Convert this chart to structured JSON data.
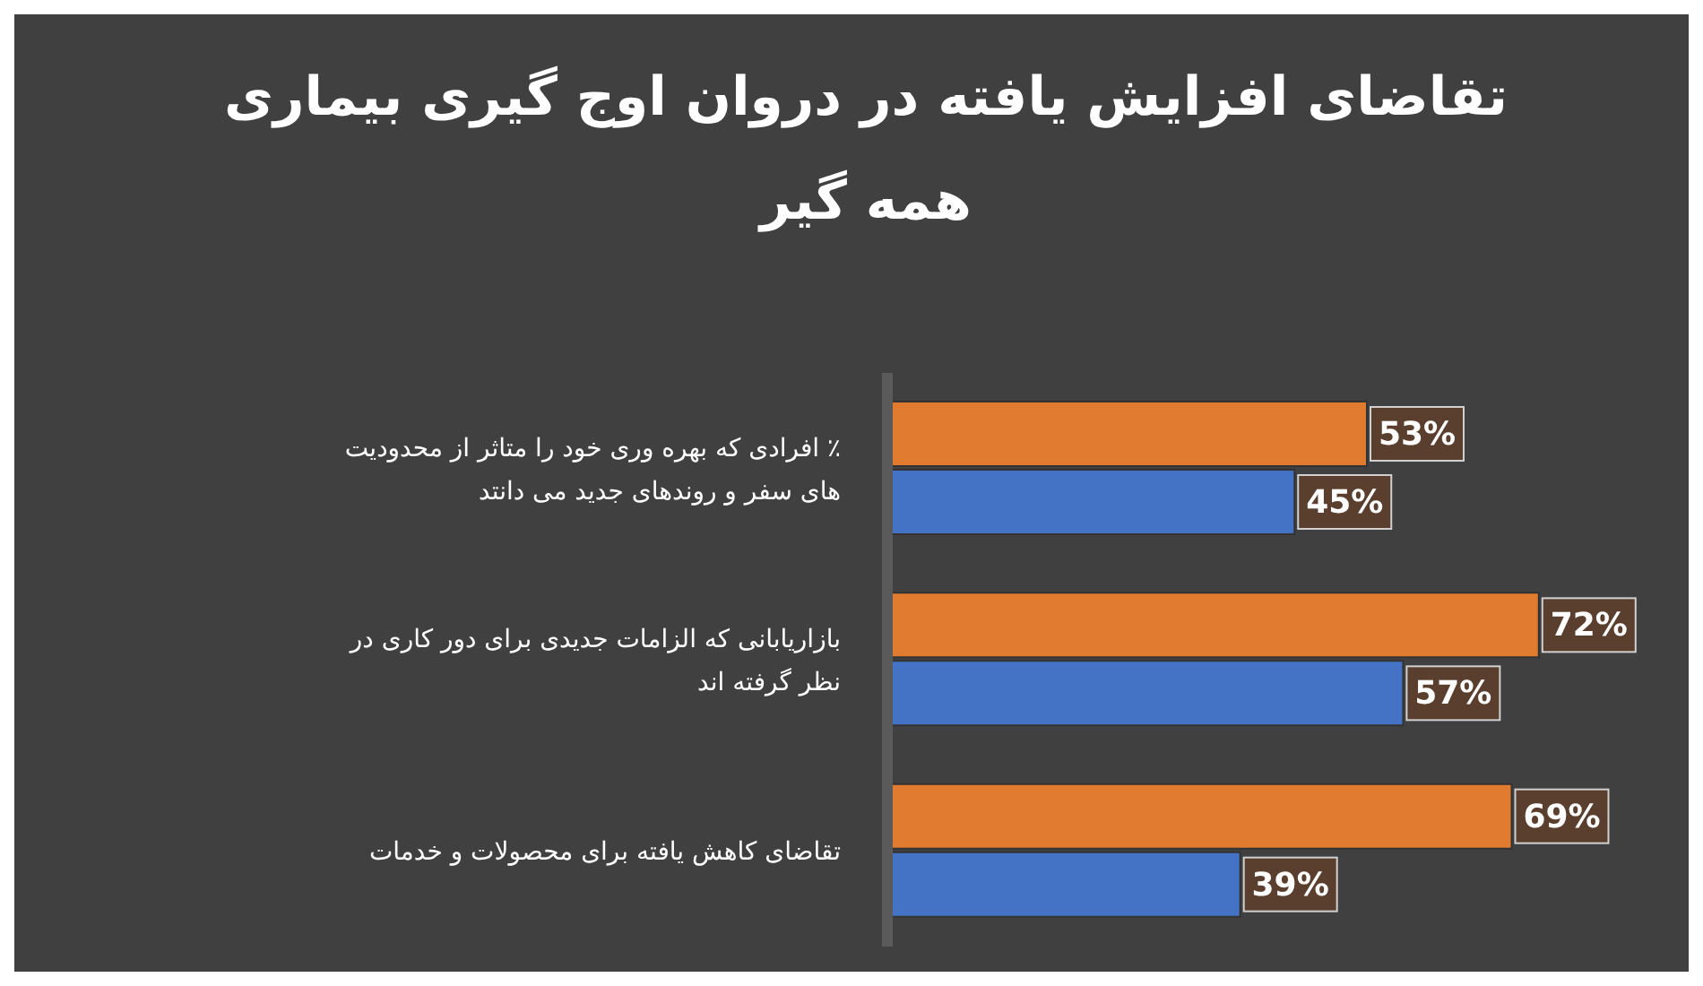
{
  "chart_data": {
    "type": "bar",
    "orientation": "horizontal",
    "title": "تقاضای افزایش یافته در دروان اوج گیری بیماری همه گیر",
    "categories": [
      "٪ افرادی که بهره وری خود را متاثر از محدودیت های سفر و روندهای جدید می دانتد",
      "بازاریابانی که الزامات جدیدی برای دور کاری در نظر گرفته اند",
      "تقاضای کاهش یافته برای محصولات و خدمات"
    ],
    "series": [
      {
        "color": "#e07b30",
        "values": [
          53,
          72,
          69
        ],
        "value_labels": [
          "53%",
          "72%",
          "69%"
        ]
      },
      {
        "color": "#4472c4",
        "values": [
          45,
          57,
          39
        ],
        "value_labels": [
          "45%",
          "57%",
          "39%"
        ]
      }
    ],
    "grid": false,
    "legend": false
  }
}
